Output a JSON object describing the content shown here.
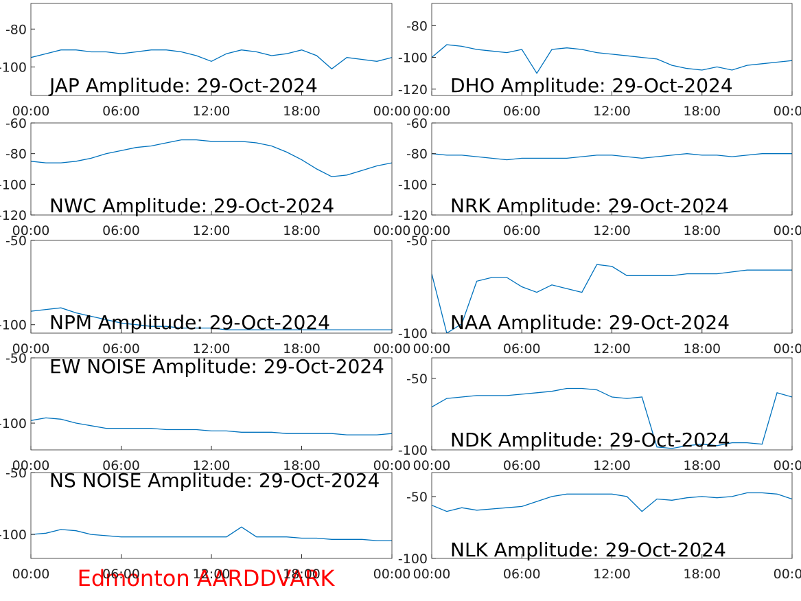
{
  "chart_data": [
    {
      "type": "line",
      "title": "JAP Amplitude: 29-Oct-2024",
      "color": "#0072bd",
      "x": [
        0,
        1,
        2,
        3,
        4,
        5,
        6,
        7,
        8,
        9,
        10,
        11,
        12,
        13,
        14,
        15,
        16,
        17,
        18,
        19,
        20,
        21,
        22,
        23,
        24
      ],
      "values": [
        -95,
        -93,
        -91,
        -91,
        -92,
        -92,
        -93,
        -92,
        -91,
        -91,
        -92,
        -94,
        -97,
        -93,
        -91,
        -92,
        -94,
        -93,
        -91,
        -94,
        -101,
        -95,
        -96,
        -97,
        -95
      ],
      "xlim": [
        0,
        24
      ],
      "xticks": [
        {
          "value": 0,
          "label": "00:00"
        },
        {
          "value": 6,
          "label": "06:00"
        },
        {
          "value": 12,
          "label": "12:00"
        },
        {
          "value": 18,
          "label": "18:00"
        },
        {
          "value": 24,
          "label": "00:00"
        }
      ],
      "ylim": [
        -115,
        -66.5
      ],
      "yticks": [
        -100,
        -80
      ]
    },
    {
      "type": "line",
      "title": "DHO Amplitude: 29-Oct-2024",
      "color": "#0072bd",
      "x": [
        0,
        1,
        2,
        3,
        4,
        5,
        6,
        7,
        8,
        9,
        10,
        11,
        12,
        13,
        14,
        15,
        16,
        17,
        18,
        19,
        20,
        21,
        22,
        23,
        24
      ],
      "values": [
        -100,
        -92,
        -93,
        -95,
        -96,
        -97,
        -95,
        -110,
        -95,
        -94,
        -95,
        -97,
        -98,
        -99,
        -100,
        -101,
        -105,
        -107,
        -108,
        -106,
        -108,
        -105,
        -104,
        -103,
        -102
      ],
      "xlim": [
        0,
        24
      ],
      "xticks": [
        {
          "value": 0,
          "label": "00:00"
        },
        {
          "value": 6,
          "label": "06:00"
        },
        {
          "value": 12,
          "label": "12:00"
        },
        {
          "value": 18,
          "label": "18:00"
        },
        {
          "value": 24,
          "label": "00:00"
        }
      ],
      "ylim": [
        -124,
        -66
      ],
      "yticks": [
        -120,
        -100,
        -80
      ]
    },
    {
      "type": "line",
      "title": "NWC Amplitude: 29-Oct-2024",
      "color": "#0072bd",
      "x": [
        0,
        1,
        2,
        3,
        4,
        5,
        6,
        7,
        8,
        9,
        10,
        11,
        12,
        13,
        14,
        15,
        16,
        17,
        18,
        19,
        20,
        21,
        22,
        23,
        24
      ],
      "values": [
        -85,
        -86,
        -86,
        -85,
        -83,
        -80,
        -78,
        -76,
        -75,
        -73,
        -71,
        -71,
        -72,
        -72,
        -72,
        -73,
        -75,
        -79,
        -84,
        -90,
        -95,
        -94,
        -91,
        -88,
        -86
      ],
      "xlim": [
        0,
        24
      ],
      "xticks": [
        {
          "value": 0,
          "label": "00:00"
        },
        {
          "value": 6,
          "label": "06:00"
        },
        {
          "value": 12,
          "label": "12:00"
        },
        {
          "value": 18,
          "label": "18:00"
        },
        {
          "value": 24,
          "label": "00:00"
        }
      ],
      "ylim": [
        -120,
        -60
      ],
      "yticks": [
        -120,
        -100,
        -80,
        -60
      ]
    },
    {
      "type": "line",
      "title": "NRK Amplitude: 29-Oct-2024",
      "color": "#0072bd",
      "x": [
        0,
        1,
        2,
        3,
        4,
        5,
        6,
        7,
        8,
        9,
        10,
        11,
        12,
        13,
        14,
        15,
        16,
        17,
        18,
        19,
        20,
        21,
        22,
        23,
        24
      ],
      "values": [
        -80,
        -81,
        -81,
        -82,
        -83,
        -84,
        -83,
        -83,
        -83,
        -83,
        -82,
        -81,
        -81,
        -82,
        -83,
        -82,
        -81,
        -80,
        -81,
        -81,
        -82,
        -81,
        -80,
        -80,
        -80
      ],
      "xlim": [
        0,
        24
      ],
      "xticks": [
        {
          "value": 0,
          "label": "00:00"
        },
        {
          "value": 6,
          "label": "06:00"
        },
        {
          "value": 12,
          "label": "12:00"
        },
        {
          "value": 18,
          "label": "18:00"
        },
        {
          "value": 24,
          "label": "00:00"
        }
      ],
      "ylim": [
        -120,
        -60
      ],
      "yticks": [
        -120,
        -100,
        -80,
        -60
      ]
    },
    {
      "type": "line",
      "title": "NPM Amplitude: 29-Oct-2024",
      "color": "#0072bd",
      "x": [
        0,
        1,
        2,
        3,
        4,
        5,
        6,
        7,
        8,
        9,
        10,
        11,
        12,
        13,
        14,
        15,
        16,
        17,
        18,
        19,
        20,
        21,
        22,
        23,
        24
      ],
      "values": [
        -92,
        -91,
        -90,
        -93,
        -95,
        -97,
        -99,
        -100,
        -101,
        -101,
        -102,
        -102,
        -102,
        -103,
        -103,
        -103,
        -103,
        -103,
        -103,
        -103,
        -103,
        -103,
        -103,
        -103,
        -103
      ],
      "xlim": [
        0,
        24
      ],
      "xticks": [
        {
          "value": 0,
          "label": "00:00"
        },
        {
          "value": 6,
          "label": "06:00"
        },
        {
          "value": 12,
          "label": "12:00"
        },
        {
          "value": 18,
          "label": "18:00"
        },
        {
          "value": 24,
          "label": "00:00"
        }
      ],
      "ylim": [
        -105,
        -50
      ],
      "yticks": [
        -100,
        -50
      ]
    },
    {
      "type": "line",
      "title": "NAA Amplitude: 29-Oct-2024",
      "color": "#0072bd",
      "x": [
        0,
        1,
        2,
        3,
        4,
        5,
        6,
        7,
        8,
        9,
        10,
        11,
        12,
        13,
        14,
        15,
        16,
        17,
        18,
        19,
        20,
        21,
        22,
        23,
        24
      ],
      "values": [
        -68,
        -100,
        -95,
        -72,
        -70,
        -70,
        -75,
        -78,
        -74,
        -76,
        -78,
        -63,
        -64,
        -69,
        -69,
        -69,
        -69,
        -68,
        -68,
        -68,
        -67,
        -66,
        -66,
        -66,
        -66
      ],
      "xlim": [
        0,
        24
      ],
      "xticks": [
        {
          "value": 0,
          "label": "00:00"
        },
        {
          "value": 6,
          "label": "06:00"
        },
        {
          "value": 12,
          "label": "12:00"
        },
        {
          "value": 18,
          "label": "18:00"
        },
        {
          "value": 24,
          "label": "00:00"
        }
      ],
      "ylim": [
        -100,
        -50
      ],
      "yticks": [
        -100,
        -50
      ]
    },
    {
      "type": "line",
      "title": "EW NOISE Amplitude: 29-Oct-2024",
      "color": "#0072bd",
      "x": [
        0,
        1,
        2,
        3,
        4,
        5,
        6,
        7,
        8,
        9,
        10,
        11,
        12,
        13,
        14,
        15,
        16,
        17,
        18,
        19,
        20,
        21,
        22,
        23,
        24
      ],
      "values": [
        -98,
        -96,
        -97,
        -100,
        -102,
        -104,
        -104,
        -104,
        -104,
        -105,
        -105,
        -105,
        -106,
        -106,
        -107,
        -107,
        -107,
        -108,
        -108,
        -108,
        -108,
        -109,
        -109,
        -109,
        -108
      ],
      "xlim": [
        0,
        24
      ],
      "xticks": [
        {
          "value": 0,
          "label": "00:00"
        },
        {
          "value": 6,
          "label": "06:00"
        },
        {
          "value": 12,
          "label": "12:00"
        },
        {
          "value": 18,
          "label": "18:00"
        },
        {
          "value": 24,
          "label": "00:00"
        }
      ],
      "ylim": [
        -120.5,
        -50
      ],
      "yticks": [
        -100,
        -50
      ]
    },
    {
      "type": "line",
      "title": "NDK Amplitude: 29-Oct-2024",
      "color": "#0072bd",
      "x": [
        0,
        1,
        2,
        3,
        4,
        5,
        6,
        7,
        8,
        9,
        10,
        11,
        12,
        13,
        14,
        15,
        16,
        17,
        18,
        19,
        20,
        21,
        22,
        23,
        24
      ],
      "values": [
        -70,
        -64,
        -63,
        -62,
        -62,
        -62,
        -61,
        -60,
        -59,
        -57,
        -57,
        -58,
        -63,
        -64,
        -63,
        -98,
        -99,
        -97,
        -96,
        -97,
        -95,
        -95,
        -96,
        -60,
        -63
      ],
      "xlim": [
        0,
        24
      ],
      "xticks": [
        {
          "value": 0,
          "label": "00:00"
        },
        {
          "value": 6,
          "label": "06:00"
        },
        {
          "value": 12,
          "label": "12:00"
        },
        {
          "value": 18,
          "label": "18:00"
        },
        {
          "value": 24,
          "label": "00:00"
        }
      ],
      "ylim": [
        -100,
        -35.6
      ],
      "yticks": [
        -100,
        -50
      ]
    },
    {
      "type": "line",
      "title": "NS NOISE Amplitude: 29-Oct-2024",
      "color": "#0072bd",
      "x": [
        0,
        1,
        2,
        3,
        4,
        5,
        6,
        7,
        8,
        9,
        10,
        11,
        12,
        13,
        14,
        15,
        16,
        17,
        18,
        19,
        20,
        21,
        22,
        23,
        24
      ],
      "values": [
        -100,
        -99,
        -96,
        -97,
        -100,
        -101,
        -102,
        -102,
        -102,
        -102,
        -102,
        -102,
        -102,
        -102,
        -94,
        -102,
        -102,
        -102,
        -103,
        -103,
        -104,
        -104,
        -104,
        -105,
        -105
      ],
      "xlim": [
        0,
        24
      ],
      "xticks": [
        {
          "value": 0,
          "label": "00:00"
        },
        {
          "value": 6,
          "label": "06:00"
        },
        {
          "value": 12,
          "label": "12:00"
        },
        {
          "value": 18,
          "label": "18:00"
        },
        {
          "value": 24,
          "label": "00:00"
        }
      ],
      "ylim": [
        -119.4,
        -50
      ],
      "yticks": [
        -100,
        -50
      ]
    },
    {
      "type": "line",
      "title": "NLK Amplitude: 29-Oct-2024",
      "color": "#0072bd",
      "x": [
        0,
        1,
        2,
        3,
        4,
        5,
        6,
        7,
        8,
        9,
        10,
        11,
        12,
        13,
        14,
        15,
        16,
        17,
        18,
        19,
        20,
        21,
        22,
        23,
        24
      ],
      "values": [
        -57,
        -62,
        -59,
        -61,
        -60,
        -59,
        -58,
        -54,
        -50,
        -48,
        -48,
        -48,
        -48,
        -50,
        -62,
        -52,
        -53,
        -51,
        -50,
        -51,
        -50,
        -47,
        -47,
        -48,
        -52
      ],
      "xlim": [
        0,
        24
      ],
      "xticks": [
        {
          "value": 0,
          "label": "00:00"
        },
        {
          "value": 6,
          "label": "06:00"
        },
        {
          "value": 12,
          "label": "12:00"
        },
        {
          "value": 18,
          "label": "18:00"
        },
        {
          "value": 24,
          "label": "00:00"
        }
      ],
      "ylim": [
        -100,
        -30.6
      ],
      "yticks": [
        -100,
        -50
      ]
    }
  ],
  "annotation": "Edmonton AARDDVARK"
}
